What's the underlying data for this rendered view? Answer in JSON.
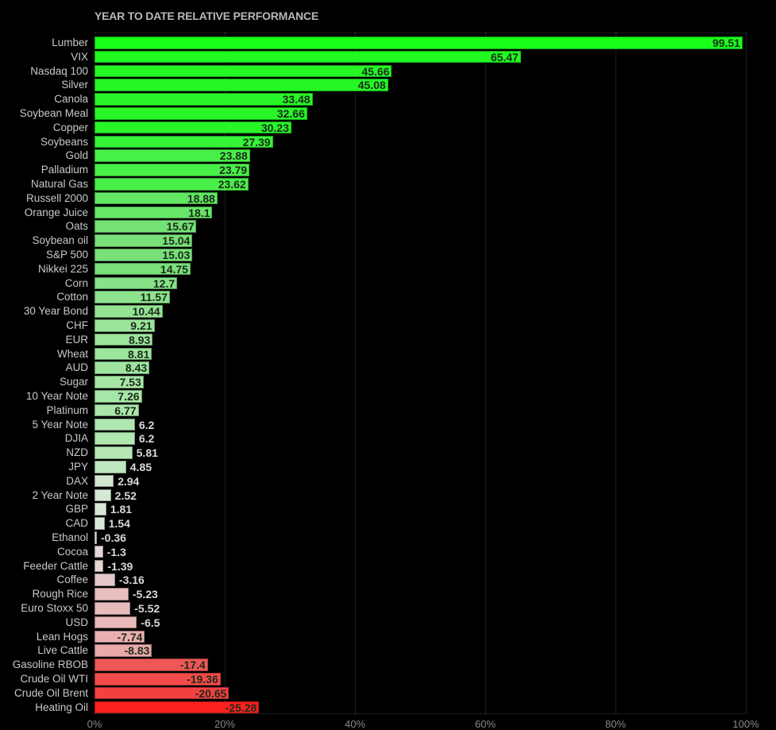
{
  "chart_data": {
    "type": "bar",
    "orientation": "horizontal",
    "title": "YEAR TO DATE RELATIVE PERFORMANCE",
    "xlabel": "",
    "ylabel": "",
    "xlim": [
      0,
      100
    ],
    "x_ticks": [
      "0%",
      "20%",
      "40%",
      "60%",
      "80%",
      "100%"
    ],
    "grid": true,
    "bar_length": "absolute value",
    "categories": [
      "Lumber",
      "VIX",
      "Nasdaq 100",
      "Silver",
      "Canola",
      "Soybean Meal",
      "Copper",
      "Soybeans",
      "Gold",
      "Palladium",
      "Natural Gas",
      "Russell 2000",
      "Orange Juice",
      "Oats",
      "Soybean oil",
      "S&P 500",
      "Nikkei 225",
      "Corn",
      "Cotton",
      "30 Year Bond",
      "CHF",
      "EUR",
      "Wheat",
      "AUD",
      "Sugar",
      "10 Year Note",
      "Platinum",
      "5 Year Note",
      "DJIA",
      "NZD",
      "JPY",
      "DAX",
      "2 Year Note",
      "GBP",
      "CAD",
      "Ethanol",
      "Cocoa",
      "Feeder Cattle",
      "Coffee",
      "Rough Rice",
      "Euro Stoxx 50",
      "USD",
      "Lean Hogs",
      "Live Cattle",
      "Gasoline RBOB",
      "Crude Oil WTI",
      "Crude Oil Brent",
      "Heating Oil"
    ],
    "values": [
      99.51,
      65.47,
      45.66,
      45.08,
      33.48,
      32.66,
      30.23,
      27.39,
      23.88,
      23.79,
      23.62,
      18.88,
      18.1,
      15.67,
      15.04,
      15.03,
      14.75,
      12.7,
      11.57,
      10.44,
      9.21,
      8.93,
      8.81,
      8.43,
      7.53,
      7.26,
      6.77,
      6.2,
      6.2,
      5.81,
      4.85,
      2.94,
      2.52,
      1.81,
      1.54,
      -0.36,
      -1.3,
      -1.39,
      -3.16,
      -5.23,
      -5.52,
      -6.5,
      -7.74,
      -8.83,
      -17.4,
      -19.36,
      -20.65,
      -25.28
    ],
    "labels": [
      "99.51",
      "65.47",
      "45.66",
      "45.08",
      "33.48",
      "32.66",
      "30.23",
      "27.39",
      "23.88",
      "23.79",
      "23.62",
      "18.88",
      "18.1",
      "15.67",
      "15.04",
      "15.03",
      "14.75",
      "12.7",
      "11.57",
      "10.44",
      "9.21",
      "8.93",
      "8.81",
      "8.43",
      "7.53",
      "7.26",
      "6.77",
      "6.2",
      "6.2",
      "5.81",
      "4.85",
      "2.94",
      "2.52",
      "1.81",
      "1.54",
      "-0.36",
      "-1.3",
      "-1.39",
      "-3.16",
      "-5.23",
      "-5.52",
      "-6.5",
      "-7.74",
      "-8.83",
      "-17.4",
      "-19.36",
      "-20.65",
      "-25.28"
    ],
    "colors": {
      "positive_strong": "#19ff19",
      "positive_mid": "#77e077",
      "positive_weak": "#d8e8d8",
      "negative_weak": "#e8d8d8",
      "negative_mid": "#eaa8a8",
      "negative_strong": "#ff2020",
      "background": "#000000"
    }
  }
}
